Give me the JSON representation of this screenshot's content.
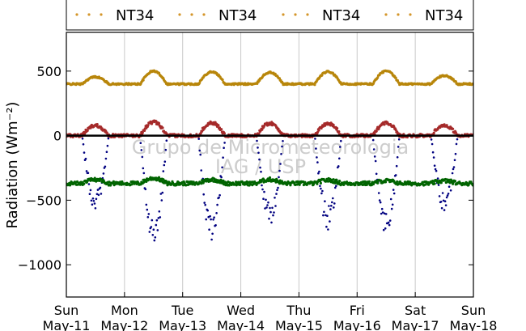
{
  "chart_data": {
    "type": "scatter",
    "title": "",
    "ylabel": "Radiation (Wm⁻²)",
    "xlabel": "",
    "x_unit": "days since Sun May-11 00:00",
    "xlim": [
      0,
      7
    ],
    "ylim": [
      -1250,
      800
    ],
    "yticks": [
      500,
      0,
      -500,
      -1000
    ],
    "ytick_labels": [
      "500",
      "0",
      "−500",
      "−1000"
    ],
    "xticks": [
      {
        "day": "Sun",
        "date": "May-11"
      },
      {
        "day": "Mon",
        "date": "May-12"
      },
      {
        "day": "Tue",
        "date": "May-13"
      },
      {
        "day": "Wed",
        "date": "May-14"
      },
      {
        "day": "Thu",
        "date": "May-15"
      },
      {
        "day": "Fri",
        "date": "May-16"
      },
      {
        "day": "Sat",
        "date": "May-17"
      },
      {
        "day": "Sun",
        "date": "May-18"
      }
    ],
    "grid": true,
    "zero_line": true,
    "legend_position": "top",
    "watermark": [
      "Grupo de Micrometeorologia",
      "IAG / USP"
    ],
    "series": [
      {
        "name": "NT34",
        "color": "#b8860b",
        "baseline": 400,
        "day_amplitude": [
          55,
          100,
          95,
          90,
          95,
          100,
          65
        ],
        "noise": 6
      },
      {
        "name": "NT34",
        "color": "#a52a2a",
        "baseline": 0,
        "day_amplitude": [
          80,
          105,
          100,
          95,
          95,
          100,
          80
        ],
        "noise": 12
      },
      {
        "name": "NT34",
        "color": "#000080",
        "baseline": 0,
        "day_amplitude": [
          -500,
          -770,
          -720,
          -620,
          -640,
          -680,
          -520
        ],
        "noise": 90
      },
      {
        "name": "NT34",
        "color": "#006400",
        "baseline": -370,
        "day_amplitude": [
          30,
          40,
          30,
          30,
          25,
          20,
          20
        ],
        "noise": 15
      }
    ]
  }
}
